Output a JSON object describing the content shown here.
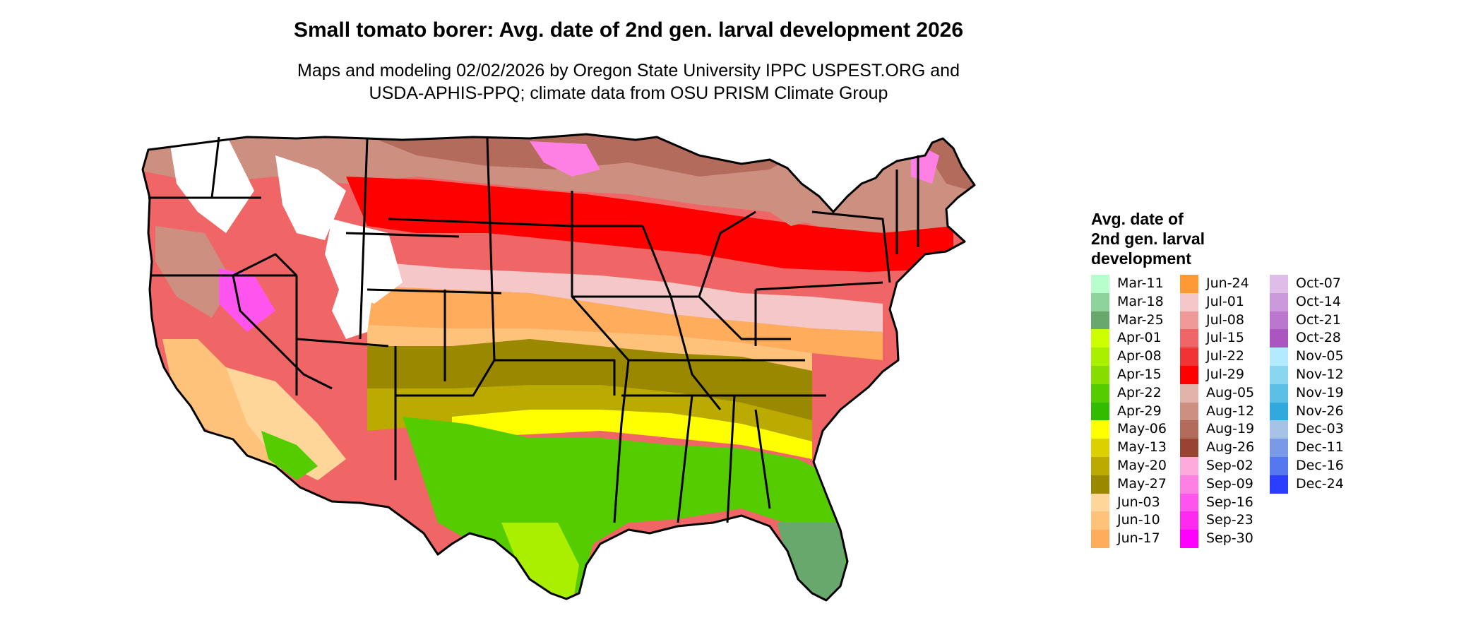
{
  "title": "Small tomato borer: Avg. date of 2nd gen. larval development 2026",
  "subtitle_line1": "Maps and modeling 02/02/2026 by Oregon State University IPPC USPEST.ORG and",
  "subtitle_line2": "USDA-APHIS-PPQ; climate data from OSU PRISM Climate Group",
  "legend": {
    "title_lines": [
      "Avg. date of",
      "2nd gen. larval",
      "development"
    ],
    "columns": [
      [
        {
          "label": "Mar-11",
          "color": "#b6ffcc"
        },
        {
          "label": "Mar-18",
          "color": "#8fd39c"
        },
        {
          "label": "Mar-25",
          "color": "#68a86d"
        },
        {
          "label": "Apr-01",
          "color": "#ccff00"
        },
        {
          "label": "Apr-08",
          "color": "#aaee00"
        },
        {
          "label": "Apr-15",
          "color": "#88dd00"
        },
        {
          "label": "Apr-22",
          "color": "#55cc00"
        },
        {
          "label": "Apr-29",
          "color": "#33bb00"
        },
        {
          "label": "May-06",
          "color": "#ffff00"
        },
        {
          "label": "May-13",
          "color": "#ddd000"
        },
        {
          "label": "May-20",
          "color": "#bbaa00"
        },
        {
          "label": "May-27",
          "color": "#998800"
        },
        {
          "label": "Jun-03",
          "color": "#ffd699"
        },
        {
          "label": "Jun-10",
          "color": "#ffc27a"
        },
        {
          "label": "Jun-17",
          "color": "#ffad5c"
        }
      ],
      [
        {
          "label": "Jun-24",
          "color": "#ff9933"
        },
        {
          "label": "Jul-01",
          "color": "#f4c8c8"
        },
        {
          "label": "Jul-08",
          "color": "#f09999"
        },
        {
          "label": "Jul-15",
          "color": "#f06666"
        },
        {
          "label": "Jul-22",
          "color": "#f03333"
        },
        {
          "label": "Jul-29",
          "color": "#ff0000"
        },
        {
          "label": "Aug-05",
          "color": "#e2b3aa"
        },
        {
          "label": "Aug-12",
          "color": "#cc8f80"
        },
        {
          "label": "Aug-19",
          "color": "#b36b5c"
        },
        {
          "label": "Aug-26",
          "color": "#994433"
        },
        {
          "label": "Sep-02",
          "color": "#ffaadd"
        },
        {
          "label": "Sep-09",
          "color": "#ff80e5"
        },
        {
          "label": "Sep-16",
          "color": "#ff55ee"
        },
        {
          "label": "Sep-23",
          "color": "#ff2af0"
        },
        {
          "label": "Sep-30",
          "color": "#ff00ff"
        }
      ],
      [
        {
          "label": "Oct-07",
          "color": "#e0bde8"
        },
        {
          "label": "Oct-14",
          "color": "#cc99dd"
        },
        {
          "label": "Oct-21",
          "color": "#bb77d0"
        },
        {
          "label": "Oct-28",
          "color": "#aa55c0"
        },
        {
          "label": "Nov-05",
          "color": "#b3eaff"
        },
        {
          "label": "Nov-12",
          "color": "#88d6f0"
        },
        {
          "label": "Nov-19",
          "color": "#5cc0e6"
        },
        {
          "label": "Nov-26",
          "color": "#30aadd"
        },
        {
          "label": "Dec-03",
          "color": "#a6c2e6"
        },
        {
          "label": "Dec-11",
          "color": "#7a99e6"
        },
        {
          "label": "Dec-16",
          "color": "#5577f0"
        },
        {
          "label": "Dec-24",
          "color": "#2b3dff"
        }
      ]
    ]
  },
  "map_colors": {
    "unclassified": "#ffffff",
    "state_border": "#000000"
  }
}
